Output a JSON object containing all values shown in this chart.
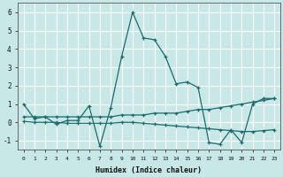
{
  "title": "",
  "xlabel": "Humidex (Indice chaleur)",
  "ylabel": "",
  "xlim": [
    -0.5,
    23.5
  ],
  "ylim": [
    -1.5,
    6.5
  ],
  "yticks": [
    -1,
    0,
    1,
    2,
    3,
    4,
    5,
    6
  ],
  "xticks": [
    0,
    1,
    2,
    3,
    4,
    5,
    6,
    7,
    8,
    9,
    10,
    11,
    12,
    13,
    14,
    15,
    16,
    17,
    18,
    19,
    20,
    21,
    22,
    23
  ],
  "background_color": "#c8e8e8",
  "grid_color": "#ffffff",
  "line_color": "#1a6b6b",
  "lines": [
    {
      "x": [
        0,
        1,
        2,
        3,
        4,
        5,
        6,
        7,
        8,
        9,
        10,
        11,
        12,
        13,
        14,
        15,
        16,
        17,
        18,
        19,
        20,
        21,
        22,
        23
      ],
      "y": [
        1.0,
        0.2,
        0.3,
        -0.1,
        0.1,
        0.1,
        0.9,
        -1.3,
        0.8,
        3.6,
        6.0,
        4.6,
        4.5,
        3.6,
        2.1,
        2.2,
        1.9,
        -1.1,
        -1.2,
        -0.4,
        -1.1,
        1.0,
        1.3,
        1.3
      ]
    },
    {
      "x": [
        0,
        1,
        2,
        3,
        4,
        5,
        6,
        7,
        8,
        9,
        10,
        11,
        12,
        13,
        14,
        15,
        16,
        17,
        18,
        19,
        20,
        21,
        22,
        23
      ],
      "y": [
        0.3,
        0.3,
        0.3,
        0.3,
        0.3,
        0.3,
        0.3,
        0.3,
        0.3,
        0.4,
        0.4,
        0.4,
        0.5,
        0.5,
        0.5,
        0.6,
        0.7,
        0.7,
        0.8,
        0.9,
        1.0,
        1.1,
        1.2,
        1.3
      ]
    },
    {
      "x": [
        0,
        1,
        2,
        3,
        4,
        5,
        6,
        7,
        8,
        9,
        10,
        11,
        12,
        13,
        14,
        15,
        16,
        17,
        18,
        19,
        20,
        21,
        22,
        23
      ],
      "y": [
        0.05,
        0.0,
        0.0,
        0.0,
        -0.05,
        -0.05,
        -0.05,
        -0.05,
        -0.05,
        0.0,
        0.0,
        -0.05,
        -0.1,
        -0.15,
        -0.2,
        -0.25,
        -0.3,
        -0.35,
        -0.4,
        -0.45,
        -0.5,
        -0.5,
        -0.45,
        -0.4
      ]
    }
  ]
}
